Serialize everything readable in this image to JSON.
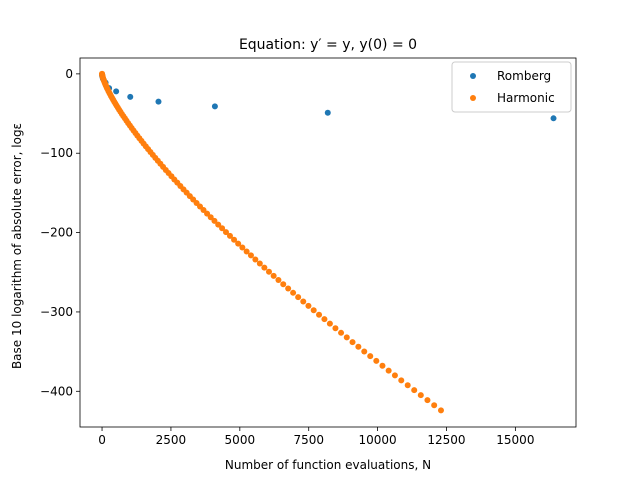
{
  "chart_data": {
    "type": "scatter",
    "title": "Equation: y′ = y, y(0) = 0",
    "xlabel": "Number of function evaluations, N",
    "ylabel": "Base 10 logarithm of absolute error, logε",
    "xlim": [
      -800,
      17200
    ],
    "ylim": [
      -445,
      20
    ],
    "xticks": [
      0,
      2500,
      5000,
      7500,
      10000,
      12500,
      15000
    ],
    "yticks": [
      0,
      -100,
      -200,
      -300,
      -400
    ],
    "legend": {
      "placement": "top-right"
    },
    "grid": false,
    "series": [
      {
        "name": "Romberg",
        "color": "#1f77b4",
        "x": [
          2,
          4,
          8,
          16,
          32,
          64,
          128,
          256,
          512,
          1024,
          2048,
          4096,
          8192,
          16384
        ],
        "y": [
          -1,
          -2,
          -3,
          -4,
          -6,
          -8,
          -11,
          -18,
          -22,
          -29,
          -35,
          -41,
          -49,
          -56
        ]
      },
      {
        "name": "Harmonic",
        "color": "#ff7f0e",
        "x": [],
        "y": [],
        "trend": {
          "n_points": 110,
          "x_end": 12300,
          "y_at_x_end": -424,
          "exponent": 0.75
        }
      }
    ]
  }
}
